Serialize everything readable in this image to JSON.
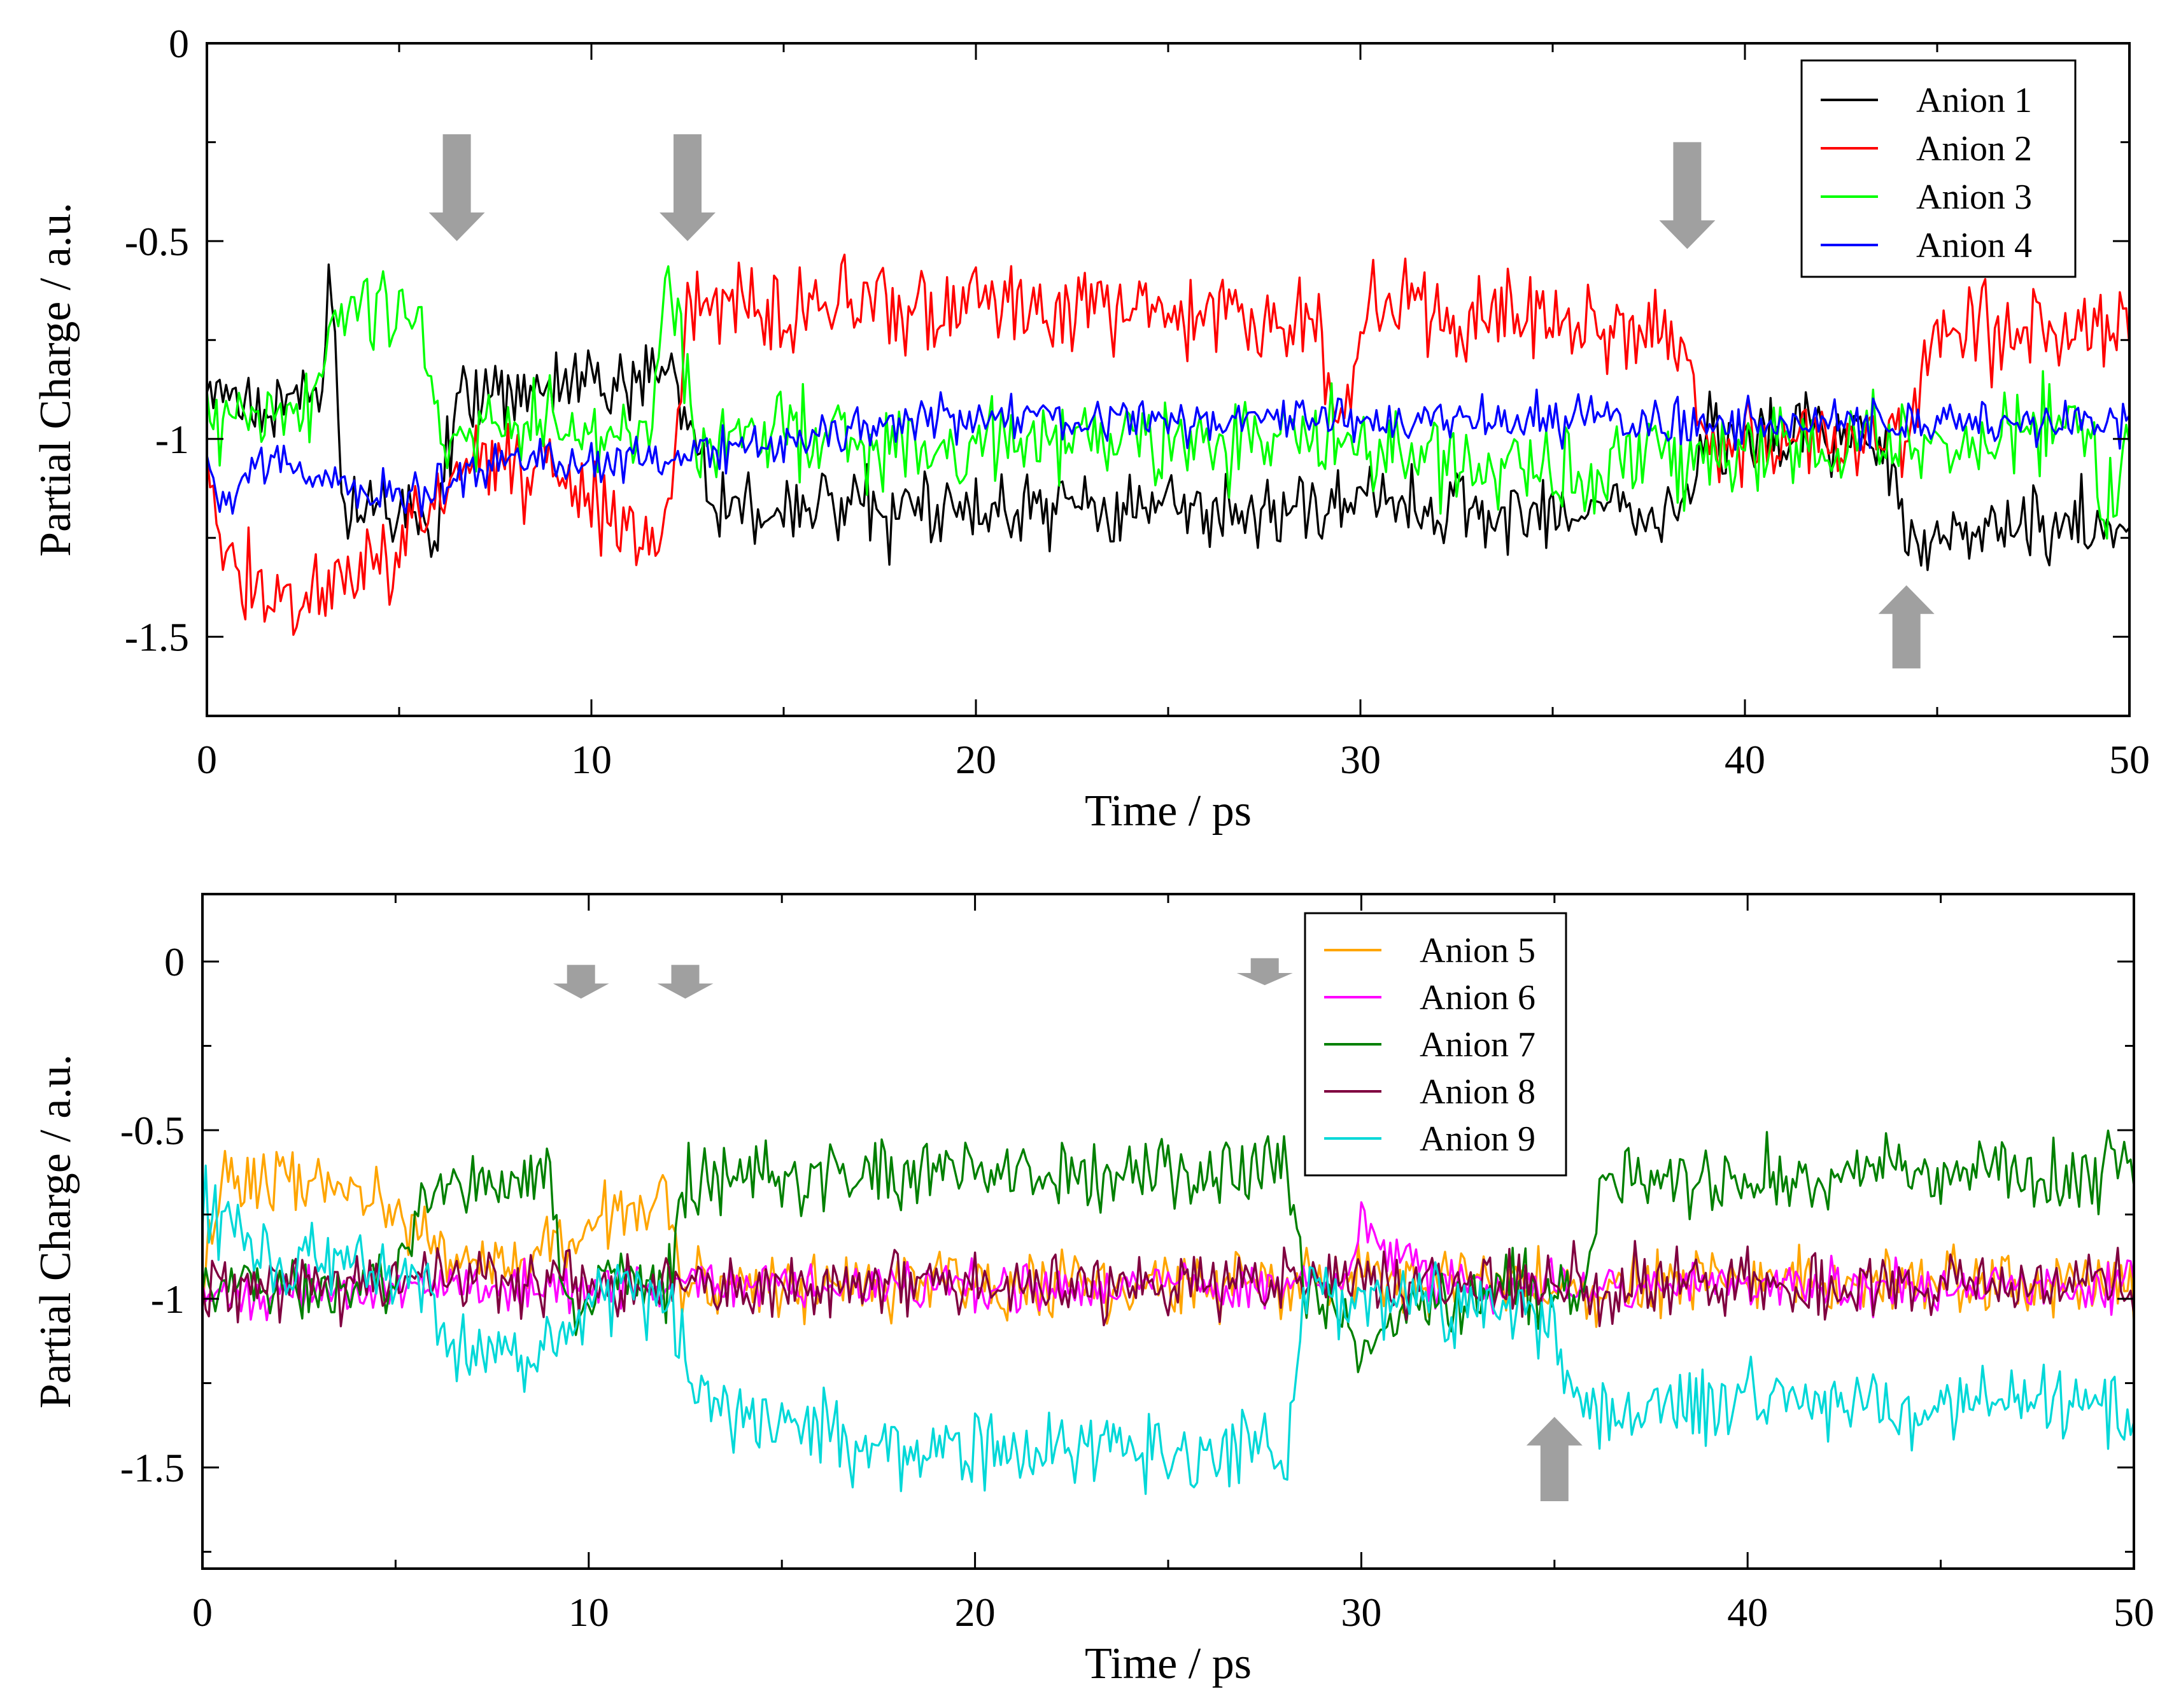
{
  "chart_data": [
    {
      "type": "line",
      "xlabel": "Time / ps",
      "ylabel": "Partial Charge / a.u.",
      "xlim": [
        0,
        50
      ],
      "ylim": [
        -1.7,
        0
      ],
      "xticks": [
        0,
        10,
        20,
        30,
        40,
        50
      ],
      "yticks": [
        0,
        -0.5,
        -1,
        -1.5
      ],
      "ytick_labels": [
        "0",
        "-0.5",
        "-1",
        "-1.5"
      ],
      "legend_position": "top-right",
      "arrows": [
        {
          "x": 6.5,
          "direction": "down",
          "y_from": -0.23,
          "y_to": -0.5
        },
        {
          "x": 12.5,
          "direction": "down",
          "y_from": -0.23,
          "y_to": -0.5
        },
        {
          "x": 38.5,
          "direction": "down",
          "y_from": -0.25,
          "y_to": -0.52
        },
        {
          "x": 44.2,
          "direction": "up",
          "y_from": -1.58,
          "y_to": -1.37
        }
      ],
      "series": [
        {
          "name": "Anion 1",
          "color": "#000000",
          "noise": 0.06,
          "segments": [
            [
              0,
              -0.92
            ],
            [
              3.0,
              -0.9
            ],
            [
              3.2,
              -0.55
            ],
            [
              3.5,
              -1.15
            ],
            [
              6.0,
              -1.2
            ],
            [
              6.5,
              -0.88
            ],
            [
              9.5,
              -0.88
            ],
            [
              12.0,
              -0.82
            ],
            [
              12.8,
              -1.05
            ],
            [
              13.5,
              -1.18
            ],
            [
              38.5,
              -1.18
            ],
            [
              39.0,
              -0.98
            ],
            [
              43.5,
              -1.0
            ],
            [
              44.2,
              -1.22
            ],
            [
              50,
              -1.22
            ]
          ]
        },
        {
          "name": "Anion 2",
          "color": "#ff0000",
          "noise": 0.07,
          "segments": [
            [
              0,
              -1.0
            ],
            [
              0.5,
              -1.35
            ],
            [
              2.5,
              -1.4
            ],
            [
              5.0,
              -1.3
            ],
            [
              6.5,
              -1.05
            ],
            [
              9.5,
              -1.1
            ],
            [
              11.8,
              -1.28
            ],
            [
              12.2,
              -1.0
            ],
            [
              12.6,
              -0.65
            ],
            [
              28.8,
              -0.68
            ],
            [
              29.5,
              -1.0
            ],
            [
              30.2,
              -0.68
            ],
            [
              38.3,
              -0.7
            ],
            [
              38.8,
              -1.0
            ],
            [
              44.2,
              -1.0
            ],
            [
              44.9,
              -0.72
            ],
            [
              50,
              -0.7
            ]
          ]
        },
        {
          "name": "Anion 3",
          "color": "#00ff00",
          "noise": 0.07,
          "segments": [
            [
              0,
              -0.98
            ],
            [
              2.8,
              -0.92
            ],
            [
              3.3,
              -0.68
            ],
            [
              5.6,
              -0.7
            ],
            [
              6.0,
              -0.98
            ],
            [
              11.6,
              -0.98
            ],
            [
              11.9,
              -0.65
            ],
            [
              12.3,
              -0.68
            ],
            [
              12.7,
              -1.0
            ],
            [
              30.0,
              -1.0
            ],
            [
              35.0,
              -1.1
            ],
            [
              40.0,
              -1.02
            ],
            [
              44.2,
              -1.02
            ],
            [
              48.8,
              -0.98
            ],
            [
              49.6,
              -1.2
            ],
            [
              50,
              -1.0
            ]
          ]
        },
        {
          "name": "Anion 4",
          "color": "#0000ff",
          "noise": 0.035,
          "segments": [
            [
              0,
              -1.05
            ],
            [
              0.5,
              -1.2
            ],
            [
              1.2,
              -1.05
            ],
            [
              5.0,
              -1.15
            ],
            [
              8.0,
              -1.05
            ],
            [
              12.0,
              -1.05
            ],
            [
              18.0,
              -0.95
            ],
            [
              50,
              -0.96
            ]
          ]
        }
      ]
    },
    {
      "type": "line",
      "xlabel": "Time / ps",
      "ylabel": "Partial Charge / a.u.",
      "xlim": [
        0,
        50
      ],
      "ylim": [
        -1.8,
        0.2
      ],
      "xticks": [
        0,
        10,
        20,
        30,
        40,
        50
      ],
      "yticks": [
        0,
        -0.5,
        -1,
        -1.5
      ],
      "ytick_labels": [
        "0",
        "-0.5",
        "-1",
        "-1.5"
      ],
      "legend_position": "top-center-right",
      "arrows": [
        {
          "x": 9.8,
          "direction": "down",
          "y_from": -0.01,
          "y_to": -0.11
        },
        {
          "x": 12.5,
          "direction": "down",
          "y_from": -0.01,
          "y_to": -0.11
        },
        {
          "x": 27.5,
          "direction": "down",
          "y_from": 0.01,
          "y_to": -0.07
        },
        {
          "x": 35.0,
          "direction": "up",
          "y_from": -1.6,
          "y_to": -1.35
        }
      ],
      "series": [
        {
          "name": "Anion 5",
          "color": "#ffa500",
          "noise": 0.06,
          "segments": [
            [
              0,
              -0.95
            ],
            [
              0.5,
              -0.65
            ],
            [
              3.0,
              -0.65
            ],
            [
              5.0,
              -0.75
            ],
            [
              7.0,
              -0.9
            ],
            [
              9.0,
              -0.85
            ],
            [
              11.0,
              -0.75
            ],
            [
              12.0,
              -0.65
            ],
            [
              12.4,
              -0.95
            ],
            [
              50,
              -0.95
            ]
          ]
        },
        {
          "name": "Anion 6",
          "color": "#ff00ff",
          "noise": 0.045,
          "segments": [
            [
              0,
              -0.98
            ],
            [
              15.0,
              -0.96
            ],
            [
              29.5,
              -0.96
            ],
            [
              30.0,
              -0.78
            ],
            [
              31.2,
              -0.9
            ],
            [
              32.0,
              -0.96
            ],
            [
              50,
              -0.96
            ]
          ]
        },
        {
          "name": "Anion 7",
          "color": "#008000",
          "noise": 0.065,
          "segments": [
            [
              0,
              -0.95
            ],
            [
              5.0,
              -0.95
            ],
            [
              5.8,
              -0.65
            ],
            [
              9.0,
              -0.65
            ],
            [
              9.5,
              -1.1
            ],
            [
              10.5,
              -0.9
            ],
            [
              12.0,
              -0.95
            ],
            [
              12.6,
              -0.65
            ],
            [
              28.0,
              -0.62
            ],
            [
              28.6,
              -0.95
            ],
            [
              30.0,
              -1.15
            ],
            [
              32.0,
              -0.98
            ],
            [
              35.8,
              -0.98
            ],
            [
              36.2,
              -0.65
            ],
            [
              50,
              -0.63
            ]
          ]
        },
        {
          "name": "Anion 8",
          "color": "#800040",
          "noise": 0.06,
          "segments": [
            [
              0,
              -0.95
            ],
            [
              50,
              -0.96
            ]
          ]
        },
        {
          "name": "Anion 9",
          "color": "#00d8d8",
          "noise": 0.07,
          "segments": [
            [
              0,
              -0.7
            ],
            [
              2.0,
              -0.9
            ],
            [
              5.8,
              -0.92
            ],
            [
              6.3,
              -1.15
            ],
            [
              8.5,
              -1.2
            ],
            [
              10.5,
              -0.95
            ],
            [
              12.0,
              -1.0
            ],
            [
              12.8,
              -1.3
            ],
            [
              15.0,
              -1.4
            ],
            [
              20.0,
              -1.45
            ],
            [
              25.0,
              -1.45
            ],
            [
              28.0,
              -1.45
            ],
            [
              28.6,
              -1.0
            ],
            [
              32.0,
              -1.0
            ],
            [
              35.0,
              -1.05
            ],
            [
              35.7,
              -1.35
            ],
            [
              40.0,
              -1.3
            ],
            [
              50,
              -1.32
            ]
          ]
        }
      ]
    }
  ]
}
